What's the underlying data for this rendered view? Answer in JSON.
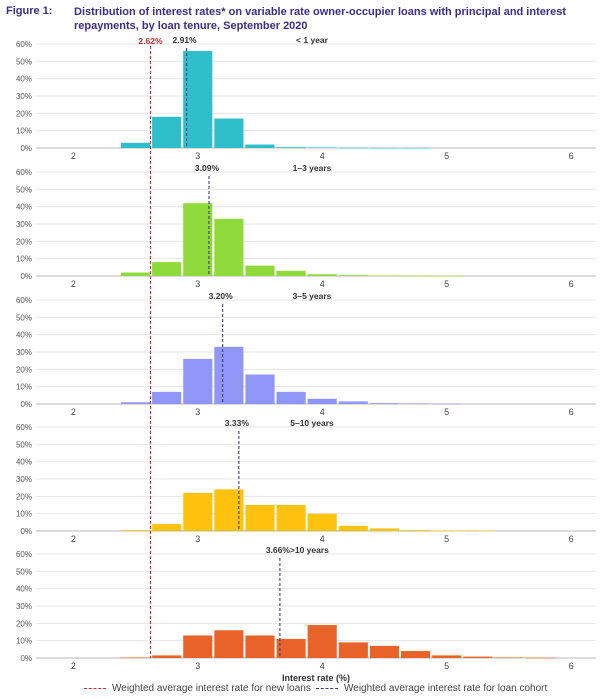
{
  "figure": {
    "label": "Figure 1:",
    "title": "Distribution of interest rates* on variable rate owner-occupier loans with principal and interest repayments, by loan tenure, September 2020"
  },
  "legend": {
    "new_loans": "Weighted average interest rate for new loans",
    "cohort": "Weighted average interest rate for loan cohort"
  },
  "colors": {
    "new_loans_line": "#cc2b2b",
    "cohort_line": "#3a3a9a",
    "title": "#3c2c8e",
    "panel_1": "#2ebfca",
    "panel_2": "#8fd93a",
    "panel_3": "#8f96f5",
    "panel_4": "#ffc20e",
    "panel_5": "#e8632a"
  },
  "chart_data": {
    "type": "bar",
    "xlabel": "Interest rate (%)",
    "xlim": [
      1.7,
      6.2
    ],
    "ylim": [
      0,
      60
    ],
    "x_ticks": [
      "2",
      "3",
      "4",
      "5",
      "6"
    ],
    "y_ticks": [
      "0%",
      "10%",
      "20%",
      "30%",
      "40%",
      "50%",
      "60%"
    ],
    "bin_centers": [
      2.5,
      2.75,
      3.0,
      3.25,
      3.5,
      3.75,
      4.0,
      4.25,
      4.5,
      4.75,
      5.0,
      5.25,
      5.5,
      5.75
    ],
    "new_loans_rate": 2.62,
    "new_loans_label": "2.62%",
    "panels": [
      {
        "name": "< 1 year",
        "cohort_rate": 2.91,
        "cohort_label": "2.91%",
        "values": [
          3,
          18,
          56,
          17,
          2,
          0.5,
          0.3,
          0.2,
          0.1,
          0.1,
          0,
          0,
          0,
          0
        ]
      },
      {
        "name": "1–3 years",
        "cohort_rate": 3.09,
        "cohort_label": "3.09%",
        "values": [
          2,
          8,
          42,
          33,
          6,
          3,
          1,
          0.5,
          0.3,
          0.2,
          0.1,
          0,
          0,
          0
        ]
      },
      {
        "name": "3–5 years",
        "cohort_rate": 3.2,
        "cohort_label": "3.20%",
        "values": [
          1,
          7,
          26,
          33,
          17,
          7,
          3,
          1.5,
          0.5,
          0.3,
          0.2,
          0,
          0,
          0
        ]
      },
      {
        "name": "5–10 years",
        "cohort_rate": 3.33,
        "cohort_label": "3.33%",
        "values": [
          0.5,
          4,
          22,
          24,
          15,
          15,
          10,
          3,
          1.5,
          0.5,
          0.2,
          0.1,
          0,
          0
        ]
      },
      {
        "name": ">10 years",
        "cohort_rate": 3.66,
        "cohort_label": "3.66%",
        "values": [
          0.3,
          1.5,
          13,
          16,
          13,
          11,
          19,
          9,
          7,
          4,
          1.5,
          0.8,
          0.3,
          0.2
        ]
      }
    ]
  }
}
